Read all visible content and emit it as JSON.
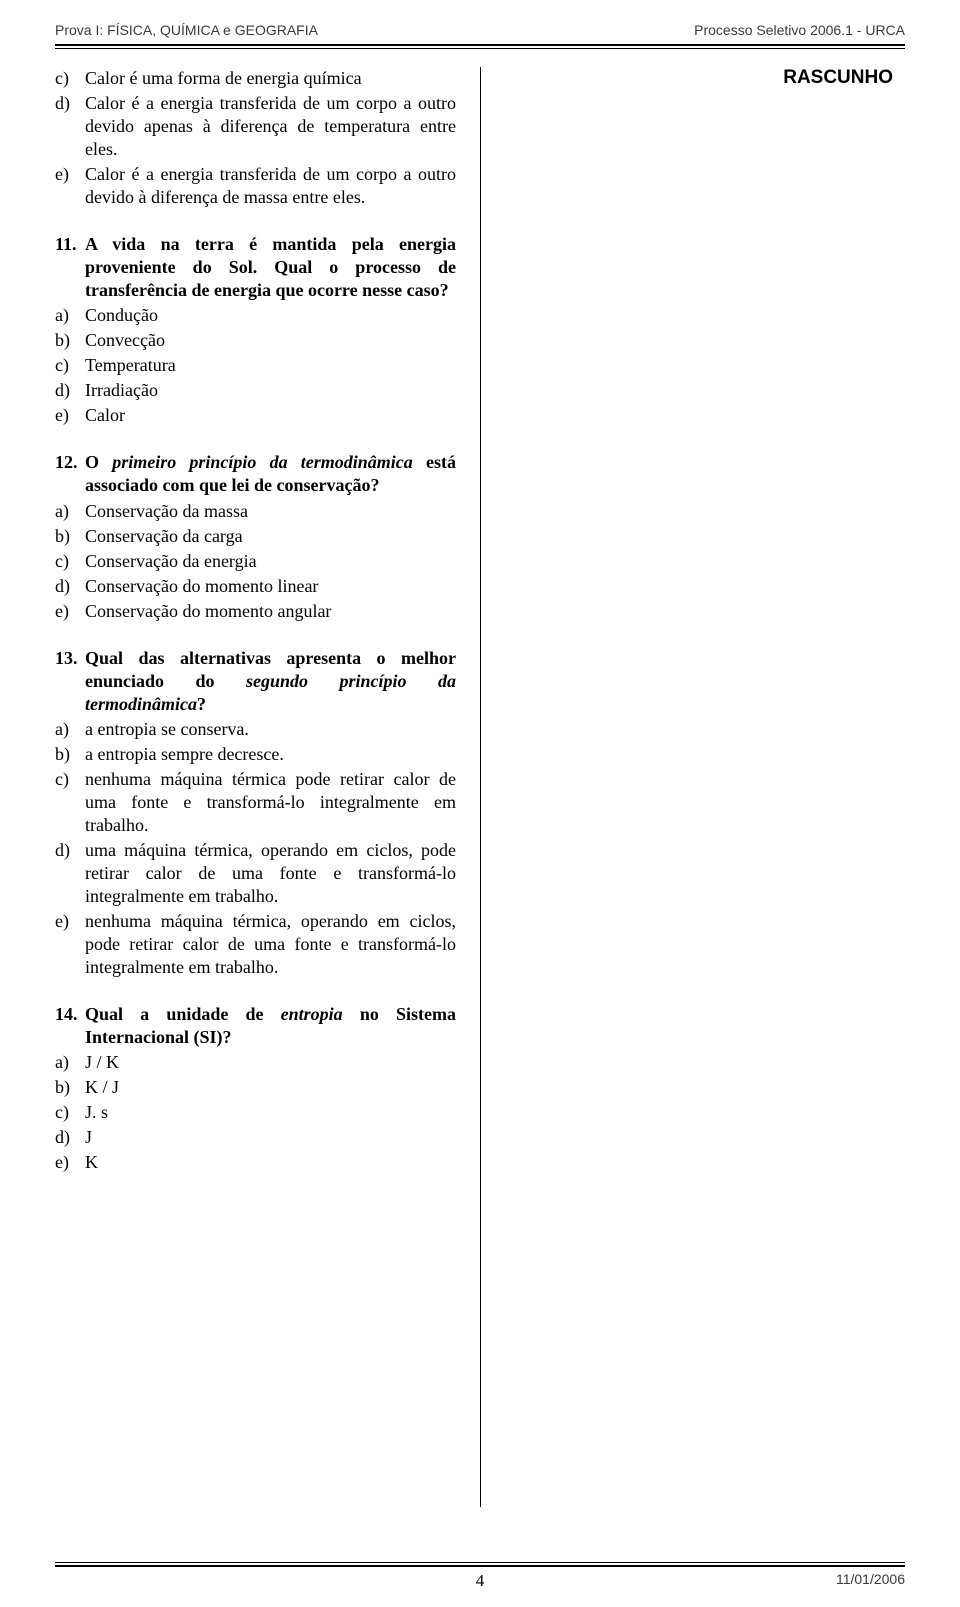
{
  "header": {
    "left": "Prova I: FÍSICA, QUÍMICA e GEOGRAFIA",
    "right": "Processo Seletivo 2006.1 - URCA"
  },
  "rascunho": "RASCUNHO",
  "prev_options": {
    "c": "Calor é uma forma de energia química",
    "d": "Calor é a energia transferida de um corpo a outro devido apenas à diferença de temperatura entre eles.",
    "e": "Calor é a energia transferida de um corpo a outro devido à diferença de massa entre eles."
  },
  "q11": {
    "num": "11.",
    "text": "A vida na terra é mantida pela energia proveniente do Sol. Qual o processo de transferência de energia que ocorre nesse caso?",
    "a": "Condução",
    "b": "Convecção",
    "c": "Temperatura",
    "d": "Irradiação",
    "e": "Calor"
  },
  "q12": {
    "num": "12.",
    "text_pre": "O ",
    "text_ital": "primeiro princípio da termodinâmica",
    "text_post": " está associado com que lei de conservação?",
    "a": "Conservação da massa",
    "b": "Conservação da carga",
    "c": "Conservação da energia",
    "d": "Conservação do momento linear",
    "e": "Conservação do momento angular"
  },
  "q13": {
    "num": "13.",
    "text_pre": "Qual das alternativas apresenta o melhor enunciado do ",
    "text_ital": "segundo princípio da termodinâmica",
    "text_post": "?",
    "a": "a entropia se conserva.",
    "b": "a entropia sempre decresce.",
    "c": "nenhuma máquina térmica pode retirar calor de uma fonte e transformá-lo integralmente em trabalho.",
    "d": "uma máquina térmica, operando em ciclos, pode retirar calor de uma fonte e transformá-lo integralmente em trabalho.",
    "e": "nenhuma máquina térmica, operando em ciclos, pode retirar calor de uma fonte e transformá-lo integralmente em trabalho."
  },
  "q14": {
    "num": "14.",
    "text_pre": "Qual a unidade de ",
    "text_ital": "entropia",
    "text_post": " no Sistema Internacional (SI)?",
    "a": "J / K",
    "b": "K / J",
    "c": "J. s",
    "d": "J",
    "e": "K"
  },
  "labels": {
    "a": "a)",
    "b": "b)",
    "c": "c)",
    "d": "d)",
    "e": "e)"
  },
  "footer": {
    "page": "4",
    "date": "11/01/2006"
  }
}
